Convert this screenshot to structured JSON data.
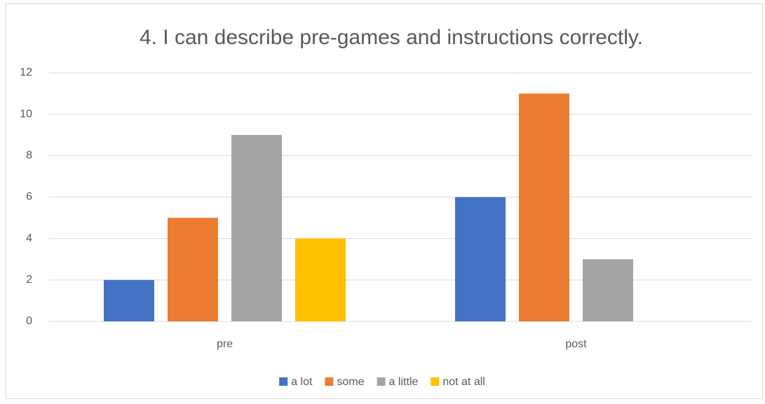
{
  "chart_data": {
    "type": "bar",
    "title": "4. I can describe pre-games and instructions correctly.",
    "categories": [
      "pre",
      "post"
    ],
    "series": [
      {
        "name": "a lot",
        "color": "#4472c4",
        "values": [
          2,
          6
        ]
      },
      {
        "name": "some",
        "color": "#ed7d31",
        "values": [
          5,
          11
        ]
      },
      {
        "name": "a little",
        "color": "#a5a5a5",
        "values": [
          9,
          3
        ]
      },
      {
        "name": "not at all",
        "color": "#ffc000",
        "values": [
          4,
          0
        ]
      }
    ],
    "ylim": [
      0,
      12
    ],
    "yticks": [
      0,
      2,
      4,
      6,
      8,
      10,
      12
    ],
    "grid": true,
    "legend": "bottom"
  }
}
